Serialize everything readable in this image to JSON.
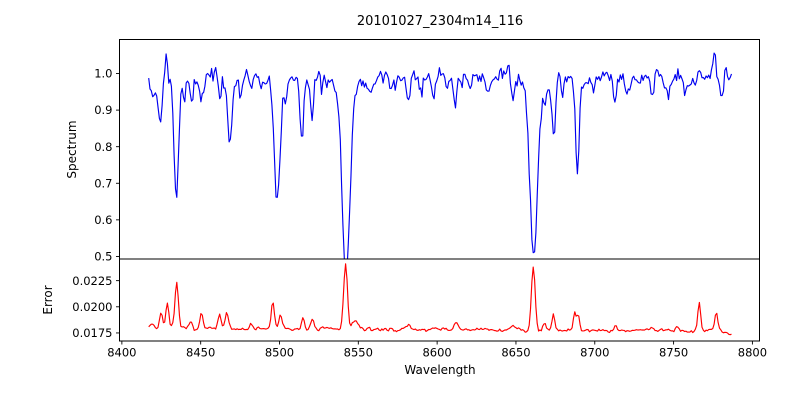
{
  "title": "20101027_2304m14_116",
  "xlabel": "Wavelength",
  "axes_color": "#000000",
  "background_color": "#ffffff",
  "xlim": [
    8398.5,
    8804.5
  ],
  "xticks": [
    {
      "v": 8400,
      "label": "8400"
    },
    {
      "v": 8450,
      "label": "8450"
    },
    {
      "v": 8500,
      "label": "8500"
    },
    {
      "v": 8550,
      "label": "8550"
    },
    {
      "v": 8600,
      "label": "8600"
    },
    {
      "v": 8650,
      "label": "8650"
    },
    {
      "v": 8700,
      "label": "8700"
    },
    {
      "v": 8750,
      "label": "8750"
    },
    {
      "v": 8800,
      "label": "8800"
    }
  ],
  "chart_data": [
    {
      "type": "line",
      "name": "Spectrum",
      "ylabel": "Spectrum",
      "color": "#0000f0",
      "line_width": 1.15,
      "grid": false,
      "legend": "none",
      "ylim": [
        0.493,
        1.093
      ],
      "yticks": [
        {
          "v": 0.5,
          "label": "0.5"
        },
        {
          "v": 0.6,
          "label": "0.6"
        },
        {
          "v": 0.7,
          "label": "0.7"
        },
        {
          "v": 0.8,
          "label": "0.8"
        },
        {
          "v": 0.9,
          "label": "0.9"
        },
        {
          "v": 1.0,
          "label": "1.0"
        }
      ],
      "model": "spectrum",
      "x_start": 8417,
      "x_end": 8787,
      "x_step": 0.85,
      "continuum": 0.988,
      "noise_sigma": 0.0135,
      "seed": 42,
      "absorption_lines": [
        [
          8419.5,
          0.05,
          1.5
        ],
        [
          8424.2,
          0.11,
          1.1
        ],
        [
          8433.0,
          0.08,
          0.8
        ],
        [
          8434.8,
          0.33,
          1.3
        ],
        [
          8439.5,
          0.06,
          0.9
        ],
        [
          8444.0,
          0.06,
          1.0
        ],
        [
          8450.0,
          0.05,
          1.0
        ],
        [
          8462.0,
          0.06,
          1.0
        ],
        [
          8468.4,
          0.165,
          1.4
        ],
        [
          8475.0,
          0.04,
          1.0
        ],
        [
          8482.0,
          0.06,
          1.0
        ],
        [
          8488.0,
          0.04,
          1.0
        ],
        [
          8498.6,
          0.33,
          1.9
        ],
        [
          8504.0,
          0.05,
          1.0
        ],
        [
          8514.2,
          0.155,
          1.2
        ],
        [
          8520.6,
          0.11,
          1.0
        ],
        [
          8526.5,
          0.05,
          1.0
        ],
        [
          8542.3,
          0.47,
          2.4
        ],
        [
          8542.3,
          0.06,
          6.0
        ],
        [
          8556.0,
          0.045,
          1.2
        ],
        [
          8571.0,
          0.04,
          1.0
        ],
        [
          8582.0,
          0.05,
          1.1
        ],
        [
          8590.0,
          0.04,
          1.0
        ],
        [
          8598.0,
          0.05,
          1.1
        ],
        [
          8611.5,
          0.075,
          1.3
        ],
        [
          8621.0,
          0.05,
          1.0
        ],
        [
          8632.0,
          0.04,
          1.0
        ],
        [
          8648.0,
          0.045,
          1.1
        ],
        [
          8661.3,
          0.44,
          2.2
        ],
        [
          8661.3,
          0.05,
          5.5
        ],
        [
          8668.5,
          0.06,
          0.9
        ],
        [
          8674.0,
          0.145,
          1.1
        ],
        [
          8679.5,
          0.055,
          0.9
        ],
        [
          8688.9,
          0.235,
          1.2
        ],
        [
          8699.0,
          0.04,
          1.0
        ],
        [
          8713.0,
          0.05,
          1.0
        ],
        [
          8720.0,
          0.04,
          1.0
        ],
        [
          8736.5,
          0.05,
          1.0
        ],
        [
          8747.0,
          0.04,
          1.0
        ],
        [
          8757.0,
          0.045,
          1.0
        ],
        [
          8780.0,
          0.05,
          1.0
        ]
      ],
      "emission_spikes": [
        [
          8428.0,
          0.065,
          0.7
        ],
        [
          8776.0,
          0.075,
          0.8
        ]
      ]
    },
    {
      "type": "line",
      "name": "Error",
      "ylabel": "Error",
      "color": "#ff0000",
      "line_width": 1.15,
      "grid": false,
      "legend": "none",
      "ylim": [
        0.01673,
        0.02457
      ],
      "yticks": [
        {
          "v": 0.0175,
          "label": "0.0175"
        },
        {
          "v": 0.02,
          "label": "0.0200"
        },
        {
          "v": 0.0225,
          "label": "0.0225"
        }
      ],
      "model": "error",
      "x_start": 8417,
      "x_end": 8787,
      "x_step": 0.85,
      "baseline": 0.01792,
      "baseline_slope": -5.5e-07,
      "noise_sigma": 9e-05,
      "seed": 7,
      "peaks": [
        [
          8419.0,
          0.0005,
          1.5
        ],
        [
          8425.0,
          0.0016,
          0.9
        ],
        [
          8428.8,
          0.0026,
          0.9
        ],
        [
          8434.8,
          0.0043,
          1.1
        ],
        [
          8444.0,
          0.0006,
          1.0
        ],
        [
          8450.5,
          0.0015,
          0.9
        ],
        [
          8462.0,
          0.0013,
          0.9
        ],
        [
          8466.5,
          0.0015,
          1.0
        ],
        [
          8482.0,
          0.0005,
          1.0
        ],
        [
          8495.8,
          0.0026,
          1.0
        ],
        [
          8500.5,
          0.0013,
          1.0
        ],
        [
          8515.0,
          0.0011,
          1.0
        ],
        [
          8521.0,
          0.0008,
          1.0
        ],
        [
          8541.9,
          0.0063,
          1.2
        ],
        [
          8548.0,
          0.0008,
          1.8
        ],
        [
          8582.0,
          0.0004,
          1.2
        ],
        [
          8611.8,
          0.0007,
          1.2
        ],
        [
          8648.0,
          0.0004,
          1.2
        ],
        [
          8661.0,
          0.006,
          1.2
        ],
        [
          8668.0,
          0.0007,
          1.0
        ],
        [
          8673.8,
          0.0015,
          0.9
        ],
        [
          8687.2,
          0.0017,
          0.8
        ],
        [
          8689.5,
          0.0014,
          0.8
        ],
        [
          8713.0,
          0.0004,
          1.0
        ],
        [
          8736.0,
          0.0004,
          1.0
        ],
        [
          8752.0,
          0.0004,
          1.0
        ],
        [
          8766.3,
          0.0029,
          0.9
        ],
        [
          8777.0,
          0.0017,
          0.9
        ],
        [
          8786.0,
          -0.0005,
          1.5
        ]
      ]
    }
  ]
}
